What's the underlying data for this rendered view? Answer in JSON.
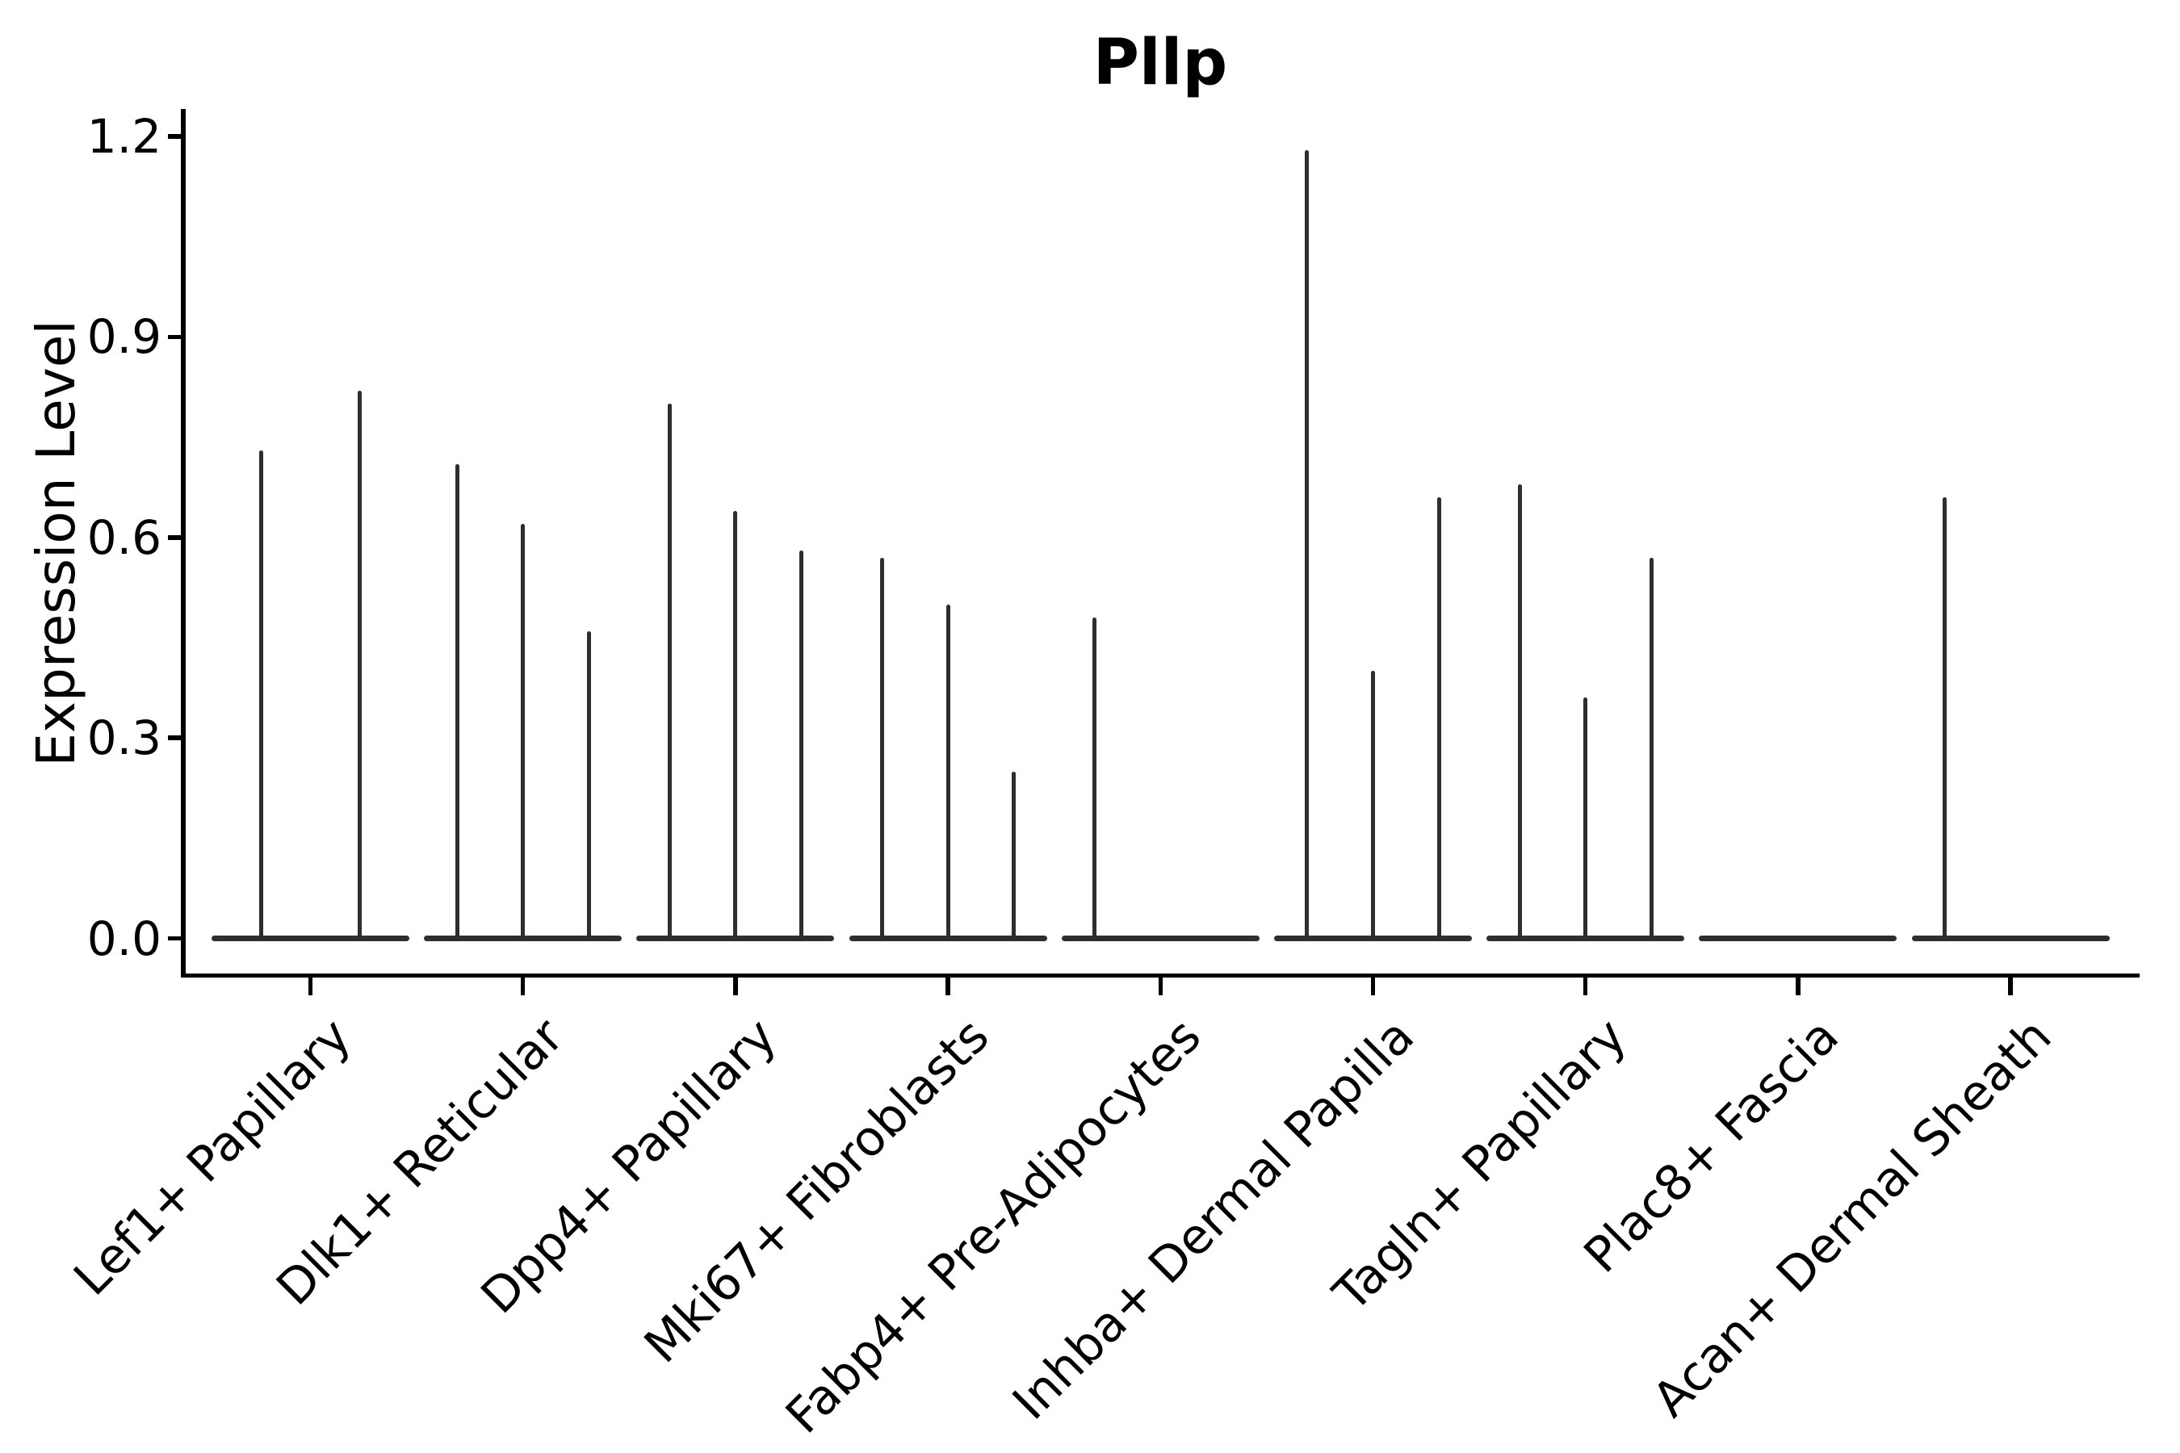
{
  "title": "Pllp",
  "y_axis": {
    "label": "Expression Level",
    "tick_labels": [
      "0.0",
      "0.3",
      "0.6",
      "0.9",
      "1.2"
    ]
  },
  "colors": {
    "violin": "#2e2e2e",
    "axis": "#000000",
    "text": "#000000",
    "background": "#ffffff"
  },
  "chart_data": {
    "type": "violin",
    "title": "Pllp",
    "xlabel": "",
    "ylabel": "Expression Level",
    "yticks": [
      0.0,
      0.3,
      0.6,
      0.9,
      1.2
    ],
    "ylim": [
      -0.055,
      1.24
    ],
    "grid": false,
    "legend": false,
    "categories": [
      "Lef1+ Papillary",
      "Dlk1+ Reticular",
      "Dpp4+ Papillary",
      "Mki67+ Fibroblasts",
      "Fabp4+ Pre-Adipocytes",
      "Inhba+ Dermal Papilla",
      "Tagln+ Papillary",
      "Plac8+ Fascia",
      "Acan+ Dermal Sheath"
    ],
    "series": [
      {
        "category": "Lef1+ Papillary",
        "violin_peaks": [
          0.73,
          0.82
        ]
      },
      {
        "category": "Dlk1+ Reticular",
        "violin_peaks": [
          0.71,
          0.62,
          0.46
        ]
      },
      {
        "category": "Dpp4+ Papillary",
        "violin_peaks": [
          0.8,
          0.64,
          0.58
        ]
      },
      {
        "category": "Mki67+ Fibroblasts",
        "violin_peaks": [
          0.57,
          0.5,
          0.25
        ]
      },
      {
        "category": "Fabp4+ Pre-Adipocytes",
        "violin_peaks": [
          0.48,
          0.0,
          0.0
        ]
      },
      {
        "category": "Inhba+ Dermal Papilla",
        "violin_peaks": [
          1.18,
          0.4,
          0.66
        ]
      },
      {
        "category": "Tagln+ Papillary",
        "violin_peaks": [
          0.68,
          0.36,
          0.57
        ]
      },
      {
        "category": "Plac8+ Fascia",
        "violin_peaks": [
          0.0,
          0.0,
          0.0
        ]
      },
      {
        "category": "Acan+ Dermal Sheath",
        "violin_peaks": [
          0.66,
          0.0,
          0.0
        ]
      }
    ]
  }
}
